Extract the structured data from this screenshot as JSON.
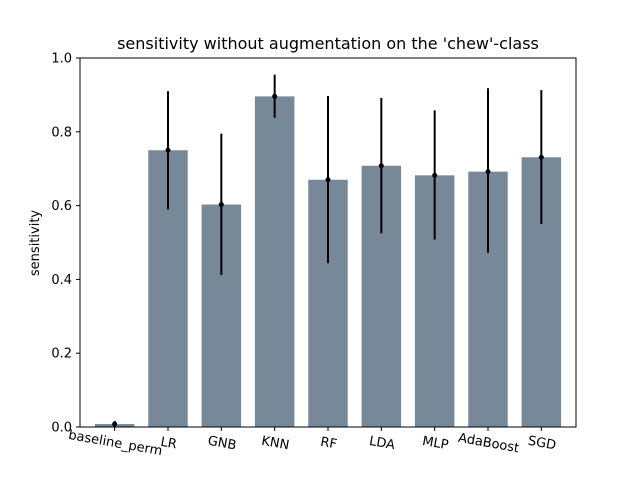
{
  "chart_data": {
    "type": "bar",
    "title": "sensitivity without augmentation on the 'chew'-class",
    "xlabel": "",
    "ylabel": "sensitivity",
    "ylim": [
      0,
      1.0
    ],
    "yticks": [
      "0.0",
      "0.2",
      "0.4",
      "0.6",
      "0.8",
      "1.0"
    ],
    "grid": false,
    "legend": "none",
    "categories": [
      "baseline_perm",
      "LR",
      "GNB",
      "KNN",
      "RF",
      "LDA",
      "MLP",
      "AdaBoost",
      "SGD"
    ],
    "values": [
      0.008,
      0.75,
      0.603,
      0.896,
      0.67,
      0.708,
      0.682,
      0.692,
      0.731
    ],
    "error_low": [
      0.002,
      0.59,
      0.412,
      0.838,
      0.444,
      0.525,
      0.508,
      0.472,
      0.55
    ],
    "error_high": [
      0.016,
      0.91,
      0.795,
      0.955,
      0.897,
      0.892,
      0.858,
      0.918,
      0.913
    ],
    "bar_color": "#778899",
    "error_color": "#000000"
  }
}
